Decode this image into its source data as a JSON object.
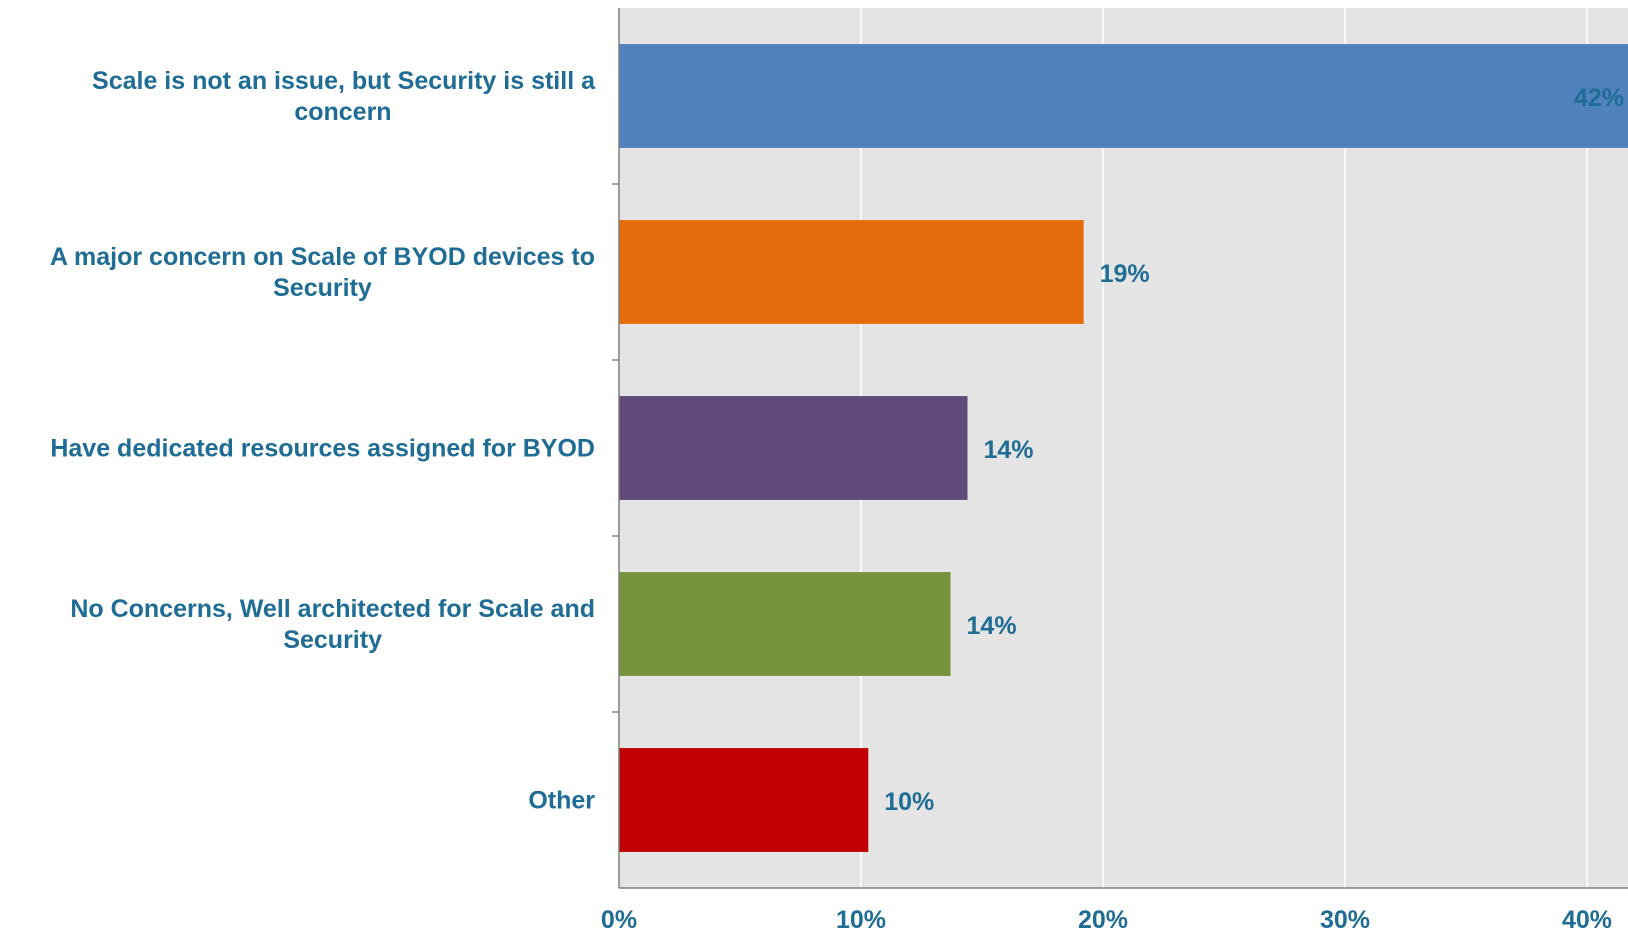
{
  "chart_data": {
    "type": "bar",
    "orientation": "horizontal",
    "categories": [
      [
        "Scale is not an issue, but Security is still a",
        "concern"
      ],
      [
        "A major concern on Scale of BYOD devices to",
        "Security"
      ],
      [
        "Have dedicated resources assigned for BYOD"
      ],
      [
        "No Concerns, Well architected for Scale and",
        "Security"
      ],
      [
        "Other"
      ]
    ],
    "values": [
      42.5,
      19.2,
      14.4,
      13.7,
      10.3
    ],
    "data_labels": [
      "42%",
      "19%",
      "14%",
      "14%",
      "10%"
    ],
    "bar_colors": [
      "#4F81BD",
      "#E46C0A",
      "#604A7B",
      "#77933C",
      "#C00000"
    ],
    "xlim": [
      0,
      45
    ],
    "xticks": [
      0,
      10,
      20,
      30,
      40
    ],
    "xtick_labels": [
      "0%",
      "10%",
      "20%",
      "30%",
      "40%"
    ],
    "grid": true,
    "plot_background": "#E4E4E4",
    "text_color": "#1F6C94",
    "title": "",
    "xlabel": "",
    "ylabel": ""
  }
}
